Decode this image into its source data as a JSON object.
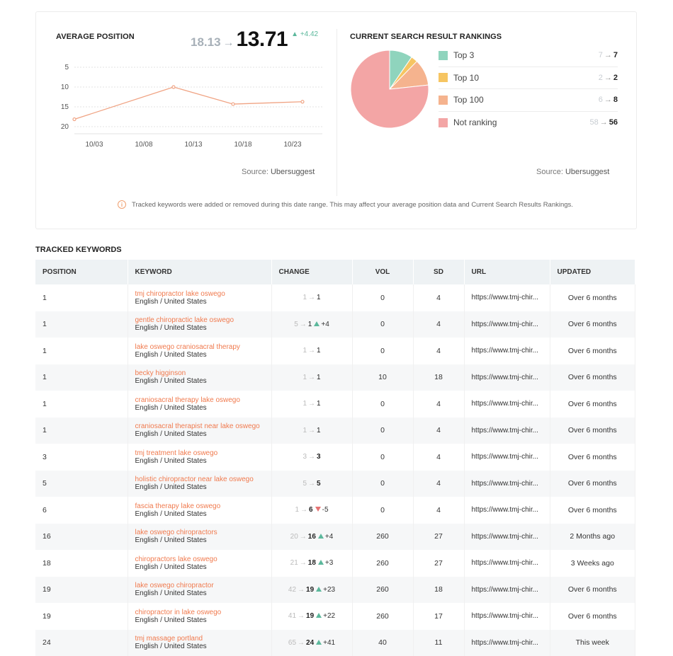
{
  "avg_position": {
    "title": "AVERAGE POSITION",
    "old_value": "18.13",
    "arrow": "→",
    "new_value": "13.71",
    "delta": "+4.42",
    "source_label": "Source:",
    "source_name": "Ubersuggest"
  },
  "chart_data": {
    "type": "line",
    "title": "AVERAGE POSITION",
    "x": [
      "10/01",
      "10/10",
      "10/17",
      "10/24"
    ],
    "x_index": [
      0,
      10,
      16,
      23
    ],
    "xtick_labels": [
      "10/03",
      "10/08",
      "10/13",
      "10/18",
      "10/23"
    ],
    "xtick_index": [
      2,
      7,
      12,
      17,
      22
    ],
    "values": [
      18.13,
      10.0,
      14.3,
      13.71
    ],
    "yticks": [
      "5",
      "10",
      "15",
      "20"
    ],
    "ylim": [
      5,
      20
    ],
    "yaxis_inverted": true,
    "grid": true,
    "line_color": "#f0a383"
  },
  "rankings": {
    "title": "CURRENT SEARCH RESULT RANKINGS",
    "source_label": "Source:",
    "source_name": "Ubersuggest",
    "items": [
      {
        "label": "Top 3",
        "from": "7",
        "to": "7",
        "color": "#8fd4bd",
        "value": 7
      },
      {
        "label": "Top 10",
        "from": "2",
        "to": "2",
        "color": "#f6c562",
        "value": 2
      },
      {
        "label": "Top 100",
        "from": "6",
        "to": "8",
        "color": "#f5b38e",
        "value": 8
      },
      {
        "label": "Not ranking",
        "from": "58",
        "to": "56",
        "color": "#f3a5a5",
        "value": 56
      }
    ]
  },
  "notice": {
    "icon": "info-icon",
    "text": "Tracked keywords were added or removed during this date range. This may affect your average position data and Current Search Results Rankings."
  },
  "tracked": {
    "title": "TRACKED KEYWORDS",
    "headers": {
      "position": "POSITION",
      "keyword": "KEYWORD",
      "change": "CHANGE",
      "vol": "VOL",
      "sd": "SD",
      "url": "URL",
      "updated": "UPDATED"
    },
    "rows": [
      {
        "position": "1",
        "keyword": "tmj chiropractor lake oswego",
        "lang": "English / United States",
        "from": "1",
        "to": "1",
        "bold": false,
        "dir": "",
        "delta": "",
        "vol": "0",
        "sd": "4",
        "url": "https://www.tmj-chir...",
        "updated": "Over 6 months"
      },
      {
        "position": "1",
        "keyword": "gentle chiropractic lake oswego",
        "lang": "English / United States",
        "from": "5",
        "to": "1",
        "bold": false,
        "dir": "up",
        "delta": "+4",
        "vol": "0",
        "sd": "4",
        "url": "https://www.tmj-chir...",
        "updated": "Over 6 months"
      },
      {
        "position": "1",
        "keyword": "lake oswego craniosacral therapy",
        "lang": "English / United States",
        "from": "1",
        "to": "1",
        "bold": false,
        "dir": "",
        "delta": "",
        "vol": "0",
        "sd": "4",
        "url": "https://www.tmj-chir...",
        "updated": "Over 6 months"
      },
      {
        "position": "1",
        "keyword": "becky higginson",
        "lang": "English / United States",
        "from": "1",
        "to": "1",
        "bold": false,
        "dir": "",
        "delta": "",
        "vol": "10",
        "sd": "18",
        "url": "https://www.tmj-chir...",
        "updated": "Over 6 months"
      },
      {
        "position": "1",
        "keyword": "craniosacral therapy lake oswego",
        "lang": "English / United States",
        "from": "1",
        "to": "1",
        "bold": false,
        "dir": "",
        "delta": "",
        "vol": "0",
        "sd": "4",
        "url": "https://www.tmj-chir...",
        "updated": "Over 6 months"
      },
      {
        "position": "1",
        "keyword": "craniosacral therapist near lake oswego",
        "lang": "English / United States",
        "from": "1",
        "to": "1",
        "bold": false,
        "dir": "",
        "delta": "",
        "vol": "0",
        "sd": "4",
        "url": "https://www.tmj-chir...",
        "updated": "Over 6 months"
      },
      {
        "position": "3",
        "keyword": "tmj treatment lake oswego",
        "lang": "English / United States",
        "from": "3",
        "to": "3",
        "bold": true,
        "dir": "",
        "delta": "",
        "vol": "0",
        "sd": "4",
        "url": "https://www.tmj-chir...",
        "updated": "Over 6 months"
      },
      {
        "position": "5",
        "keyword": "holistic chiropractor near lake oswego",
        "lang": "English / United States",
        "from": "5",
        "to": "5",
        "bold": true,
        "dir": "",
        "delta": "",
        "vol": "0",
        "sd": "4",
        "url": "https://www.tmj-chir...",
        "updated": "Over 6 months"
      },
      {
        "position": "6",
        "keyword": "fascia therapy lake oswego",
        "lang": "English / United States",
        "from": "1",
        "to": "6",
        "bold": true,
        "dir": "down",
        "delta": "-5",
        "vol": "0",
        "sd": "4",
        "url": "https://www.tmj-chir...",
        "updated": "Over 6 months"
      },
      {
        "position": "16",
        "keyword": "lake oswego chiropractors",
        "lang": "English / United States",
        "from": "20",
        "to": "16",
        "bold": true,
        "dir": "up",
        "delta": "+4",
        "vol": "260",
        "sd": "27",
        "url": "https://www.tmj-chir...",
        "updated": "2 Months ago"
      },
      {
        "position": "18",
        "keyword": "chiropractors lake oswego",
        "lang": "English / United States",
        "from": "21",
        "to": "18",
        "bold": true,
        "dir": "up",
        "delta": "+3",
        "vol": "260",
        "sd": "27",
        "url": "https://www.tmj-chir...",
        "updated": "3 Weeks ago"
      },
      {
        "position": "19",
        "keyword": "lake oswego chiropractor",
        "lang": "English / United States",
        "from": "42",
        "to": "19",
        "bold": true,
        "dir": "up",
        "delta": "+23",
        "vol": "260",
        "sd": "18",
        "url": "https://www.tmj-chir...",
        "updated": "Over 6 months"
      },
      {
        "position": "19",
        "keyword": "chiropractor in lake oswego",
        "lang": "English / United States",
        "from": "41",
        "to": "19",
        "bold": true,
        "dir": "up",
        "delta": "+22",
        "vol": "260",
        "sd": "17",
        "url": "https://www.tmj-chir...",
        "updated": "Over 6 months"
      },
      {
        "position": "24",
        "keyword": "tmj massage portland",
        "lang": "English / United States",
        "from": "65",
        "to": "24",
        "bold": true,
        "dir": "up",
        "delta": "+41",
        "vol": "40",
        "sd": "11",
        "url": "https://www.tmj-chir...",
        "updated": "This week"
      }
    ]
  }
}
